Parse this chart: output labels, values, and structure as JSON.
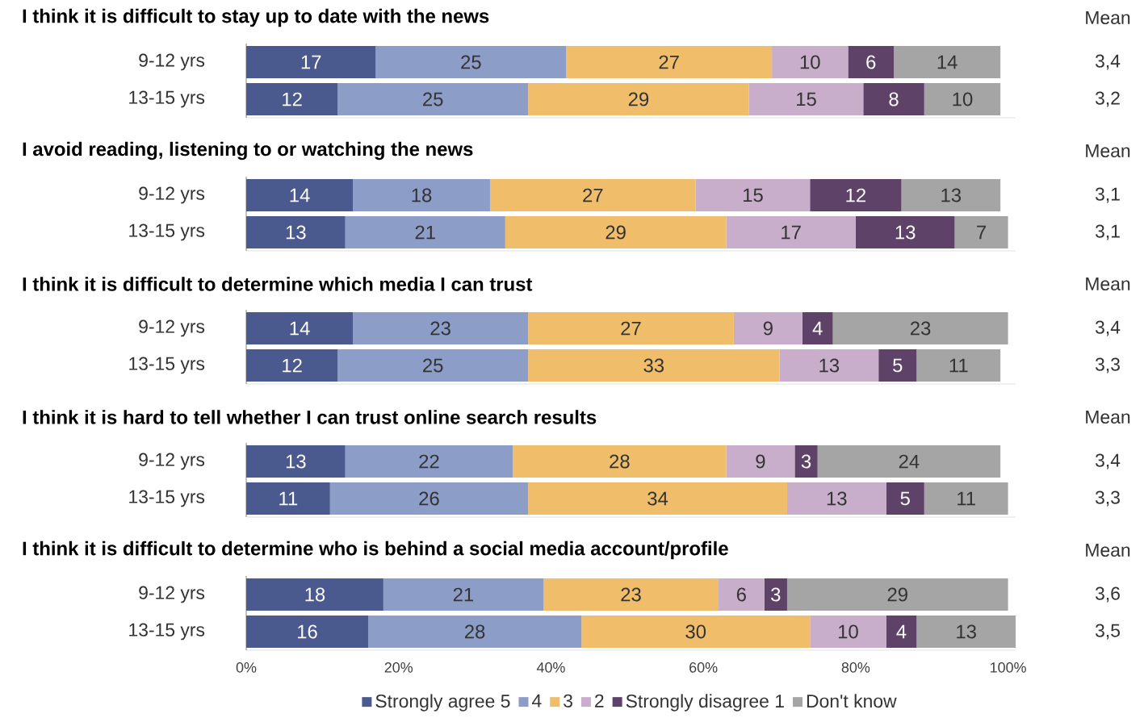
{
  "chart_data": [
    {
      "type": "bar",
      "orientation": "horizontal",
      "stacked": true,
      "data_labels": true,
      "tick_labels": "y",
      "title": "I think it is difficult to stay up to date with the news",
      "categories": [
        "9-12 yrs",
        "13-15 yrs"
      ],
      "xlim": [
        0,
        101
      ],
      "annotations": [
        "Mean",
        "3,4",
        "3,2"
      ],
      "series": [
        {
          "color": "#4a5a8e",
          "values": [
            17,
            12
          ]
        },
        {
          "color": "#8c9dc8",
          "values": [
            25,
            25
          ]
        },
        {
          "color": "#f0bd6a",
          "values": [
            27,
            29
          ]
        },
        {
          "color": "#c9aecb",
          "values": [
            10,
            15
          ]
        },
        {
          "color": "#5e4268",
          "values": [
            6,
            8
          ]
        },
        {
          "color": "#a5a5a5",
          "values": [
            14,
            10
          ]
        }
      ]
    },
    {
      "type": "bar",
      "orientation": "horizontal",
      "stacked": true,
      "data_labels": true,
      "tick_labels": "y",
      "title": "I avoid reading, listening to or watching the news",
      "categories": [
        "9-12 yrs",
        "13-15 yrs"
      ],
      "xlim": [
        0,
        101
      ],
      "annotations": [
        "Mean",
        "3,1",
        "3,1"
      ],
      "series": [
        {
          "color": "#4a5a8e",
          "values": [
            14,
            13
          ]
        },
        {
          "color": "#8c9dc8",
          "values": [
            18,
            21
          ]
        },
        {
          "color": "#f0bd6a",
          "values": [
            27,
            29
          ]
        },
        {
          "color": "#c9aecb",
          "values": [
            15,
            17
          ]
        },
        {
          "color": "#5e4268",
          "values": [
            12,
            13
          ]
        },
        {
          "color": "#a5a5a5",
          "values": [
            13,
            7
          ]
        }
      ]
    },
    {
      "type": "bar",
      "orientation": "horizontal",
      "stacked": true,
      "data_labels": true,
      "tick_labels": "y",
      "title": "I think it is difficult to determine which media I can trust",
      "categories": [
        "9-12 yrs",
        "13-15 yrs"
      ],
      "xlim": [
        0,
        101
      ],
      "annotations": [
        "Mean",
        "3,4",
        "3,3"
      ],
      "series": [
        {
          "color": "#4a5a8e",
          "values": [
            14,
            12
          ]
        },
        {
          "color": "#8c9dc8",
          "values": [
            23,
            25
          ]
        },
        {
          "color": "#f0bd6a",
          "values": [
            27,
            33
          ]
        },
        {
          "color": "#c9aecb",
          "values": [
            9,
            13
          ]
        },
        {
          "color": "#5e4268",
          "values": [
            4,
            5
          ]
        },
        {
          "color": "#a5a5a5",
          "values": [
            23,
            11
          ]
        }
      ]
    },
    {
      "type": "bar",
      "orientation": "horizontal",
      "stacked": true,
      "data_labels": true,
      "tick_labels": "y",
      "title": "I think it is hard to tell whether I can trust online search results",
      "categories": [
        "9-12 yrs",
        "13-15 yrs"
      ],
      "xlim": [
        0,
        101
      ],
      "annotations": [
        "Mean",
        "3,4",
        "3,3"
      ],
      "series": [
        {
          "color": "#4a5a8e",
          "values": [
            13,
            11
          ]
        },
        {
          "color": "#8c9dc8",
          "values": [
            22,
            26
          ]
        },
        {
          "color": "#f0bd6a",
          "values": [
            28,
            34
          ]
        },
        {
          "color": "#c9aecb",
          "values": [
            9,
            13
          ]
        },
        {
          "color": "#5e4268",
          "values": [
            3,
            5
          ]
        },
        {
          "color": "#a5a5a5",
          "values": [
            24,
            11
          ]
        }
      ]
    },
    {
      "type": "bar",
      "orientation": "horizontal",
      "stacked": true,
      "data_labels": true,
      "legend": "bottom",
      "title": "I think it is difficult to determine who is behind a social media account/profile",
      "categories": [
        "9-12 yrs",
        "13-15 yrs"
      ],
      "xlim": [
        0,
        101
      ],
      "xticks": [
        {
          "value": 0,
          "label": "0%"
        },
        {
          "value": 20,
          "label": "20%"
        },
        {
          "value": 40,
          "label": "40%"
        },
        {
          "value": 60,
          "label": "60%"
        },
        {
          "value": 80,
          "label": "80%"
        },
        {
          "value": 100,
          "label": "100%"
        }
      ],
      "annotations": [
        "Mean",
        "3,6",
        "3,5"
      ],
      "series": [
        {
          "name": "Strongly agree 5",
          "color": "#4a5a8e",
          "values": [
            18,
            16
          ]
        },
        {
          "name": "4",
          "color": "#8c9dc8",
          "values": [
            21,
            28
          ]
        },
        {
          "name": "3",
          "color": "#f0bd6a",
          "values": [
            23,
            30
          ]
        },
        {
          "name": "2",
          "color": "#c9aecb",
          "values": [
            6,
            10
          ]
        },
        {
          "name": "Strongly disagree 1",
          "color": "#5e4268",
          "values": [
            3,
            4
          ]
        },
        {
          "name": "Don't know",
          "color": "#a5a5a5",
          "values": [
            29,
            13
          ]
        }
      ]
    }
  ]
}
